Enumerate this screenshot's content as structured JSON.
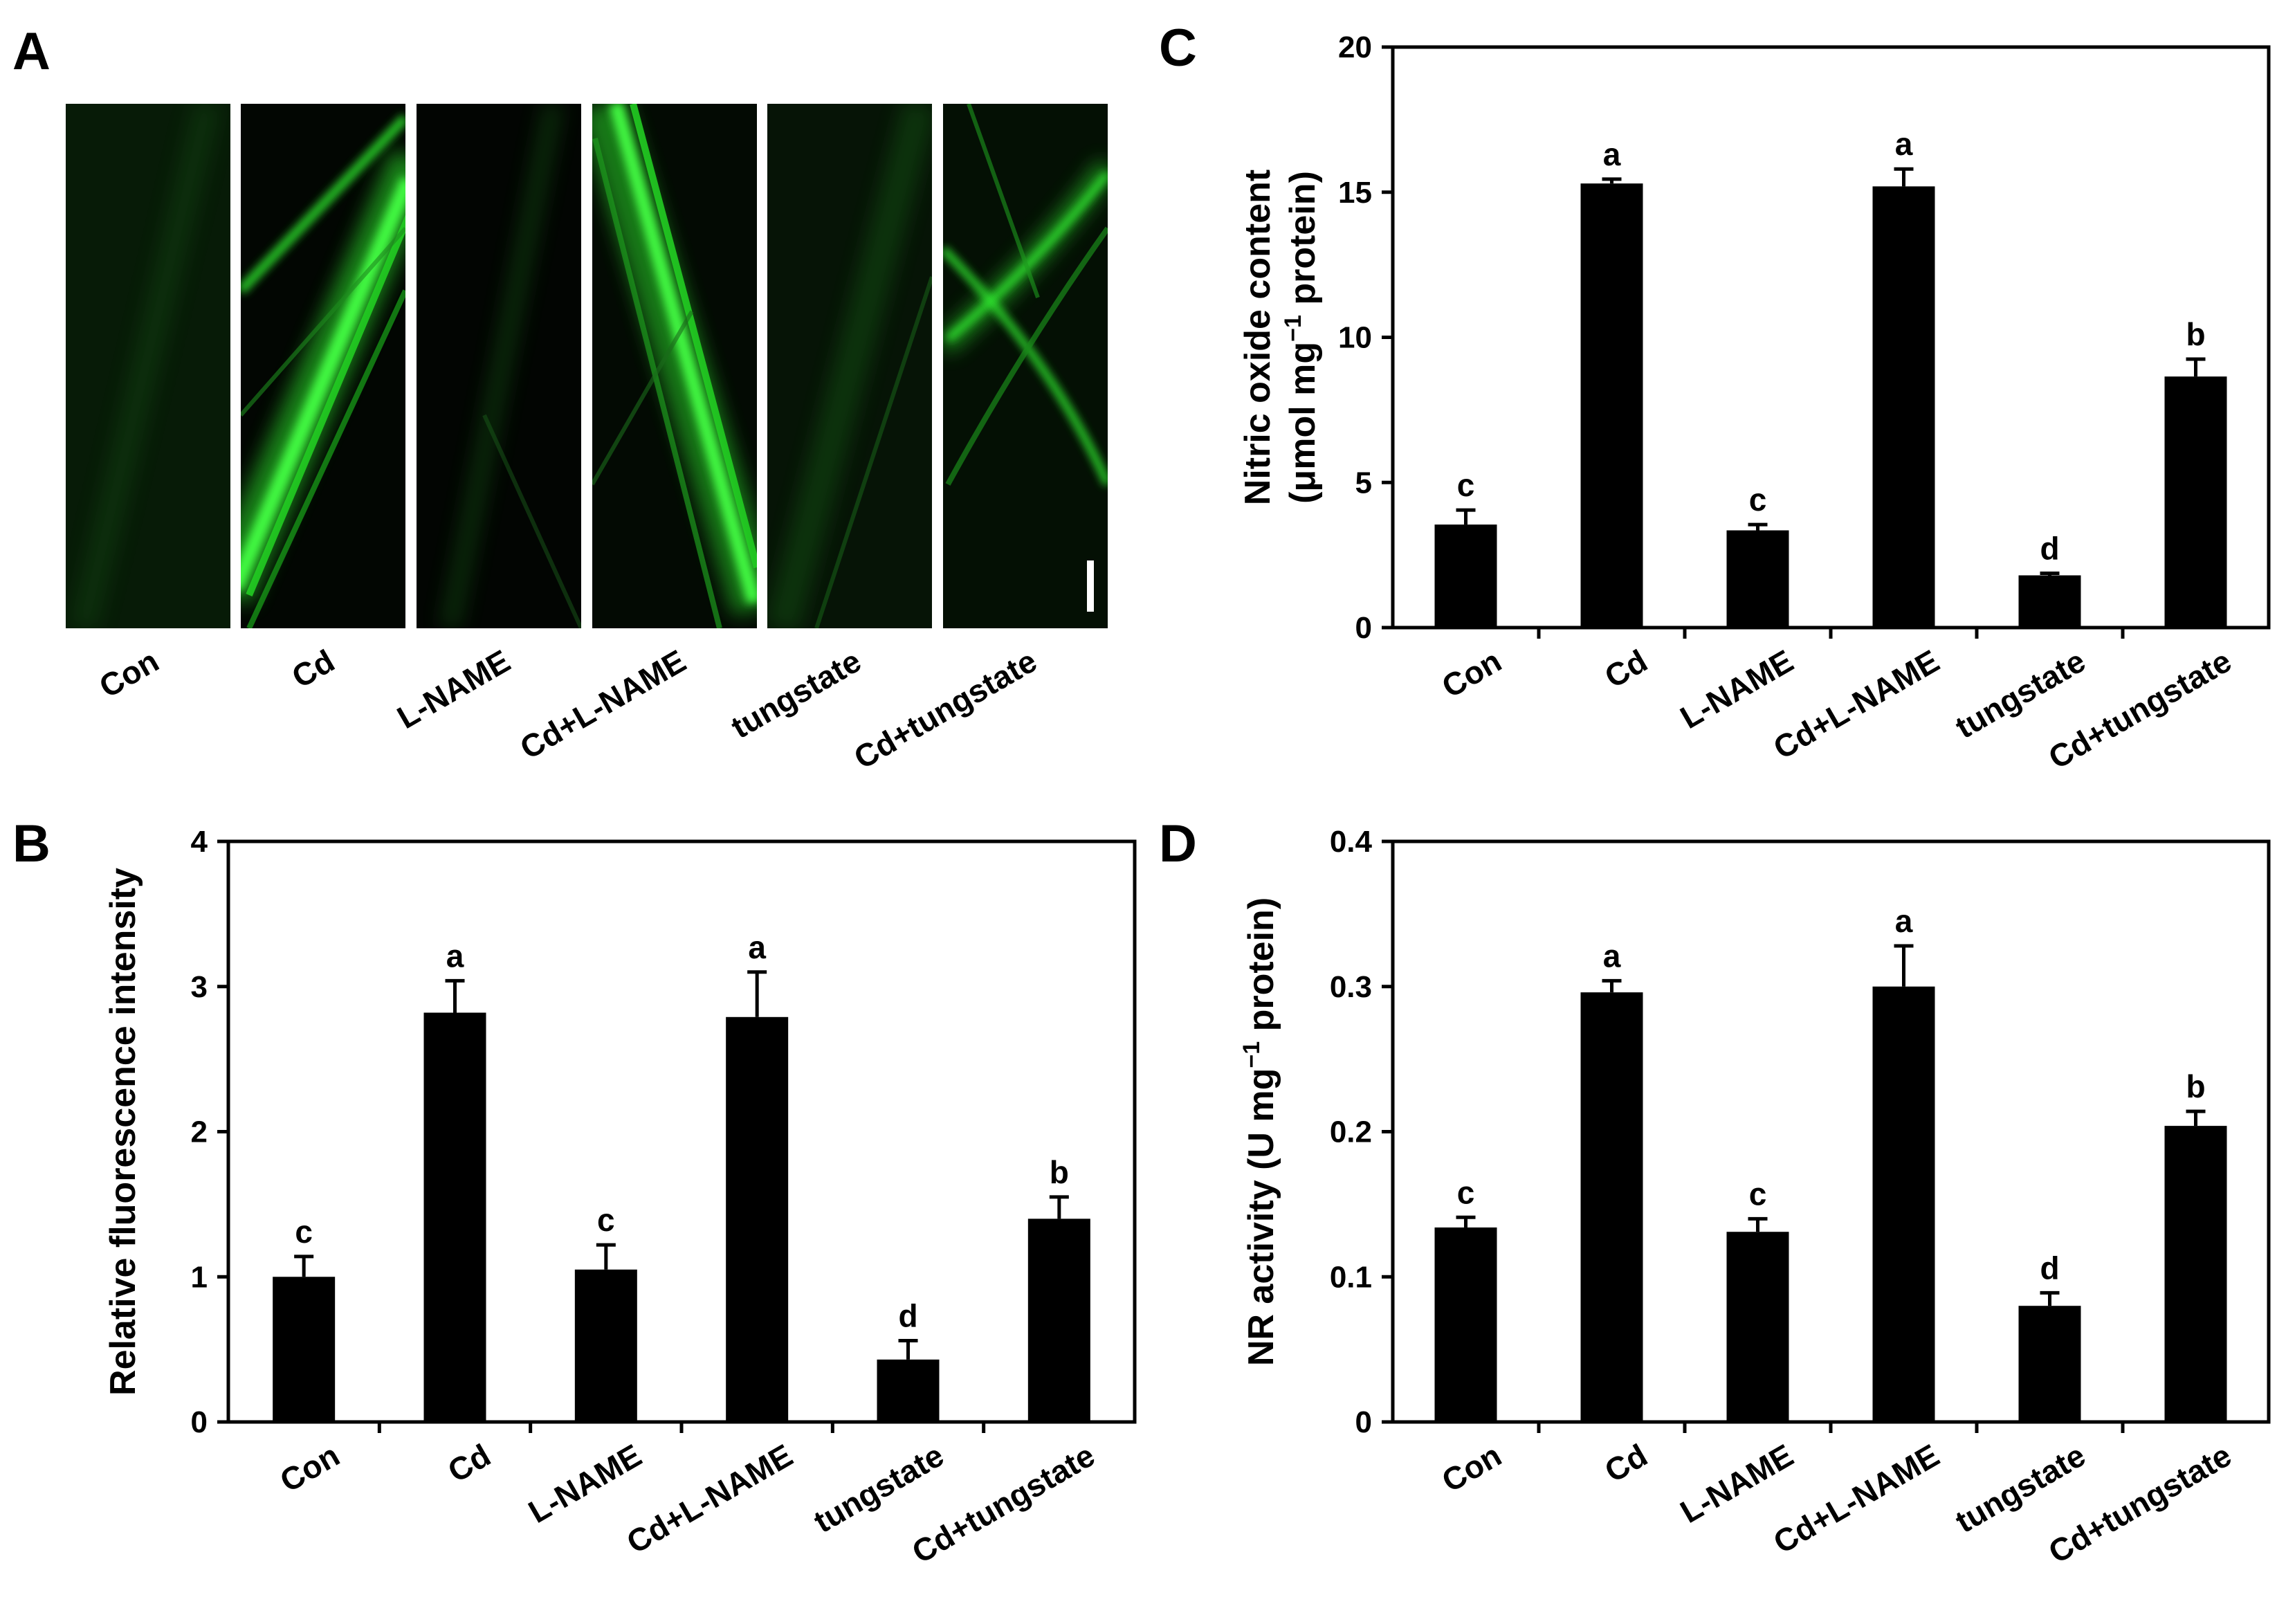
{
  "panel_a": {
    "letter": "A",
    "scale_bar": true,
    "images": [
      {
        "label": "Con",
        "fluorescence": "very-weak"
      },
      {
        "label": "Cd",
        "fluorescence": "strong"
      },
      {
        "label": "L-NAME",
        "fluorescence": "weak"
      },
      {
        "label": "Cd+L-NAME",
        "fluorescence": "strong"
      },
      {
        "label": "tungstate",
        "fluorescence": "weak"
      },
      {
        "label": "Cd+tungstate",
        "fluorescence": "moderate"
      }
    ],
    "colors": {
      "background": "#000000",
      "signal": "#33ff33"
    }
  },
  "chart_data": [
    {
      "panel": "B",
      "type": "bar",
      "ylabel": "Relative fluorescence intensity",
      "ylabel_sup": "",
      "ylabel_rest": "",
      "categories": [
        "Con",
        "Cd",
        "L-NAME",
        "Cd+L-NAME",
        "tungstate",
        "Cd+tungstate"
      ],
      "values": [
        1.0,
        2.82,
        1.05,
        2.79,
        0.43,
        1.4
      ],
      "errors": [
        0.14,
        0.22,
        0.17,
        0.31,
        0.13,
        0.15
      ],
      "letters": [
        "c",
        "a",
        "c",
        "a",
        "d",
        "b"
      ],
      "ylim": [
        0,
        4
      ],
      "yticks": [
        "0",
        "1",
        "2",
        "3",
        "4"
      ],
      "grid": false,
      "bar_color": "#000000"
    },
    {
      "panel": "C",
      "type": "bar",
      "ylabel": "Nitric oxide content",
      "ylabel2": "(μmol mg",
      "ylabel_sup": "−1",
      "ylabel_rest": " protein)",
      "categories": [
        "Con",
        "Cd",
        "L-NAME",
        "Cd+L-NAME",
        "tungstate",
        "Cd+tungstate"
      ],
      "values": [
        3.55,
        15.3,
        3.35,
        15.2,
        1.8,
        8.65
      ],
      "errors": [
        0.5,
        0.15,
        0.2,
        0.6,
        0.07,
        0.6
      ],
      "letters": [
        "c",
        "a",
        "c",
        "a",
        "d",
        "b"
      ],
      "ylim": [
        0,
        20
      ],
      "yticks": [
        "0",
        "5",
        "10",
        "15",
        "20"
      ],
      "grid": false,
      "bar_color": "#000000"
    },
    {
      "panel": "D",
      "type": "bar",
      "ylabel": "NR activity (U mg",
      "ylabel_sup": "−1",
      "ylabel_rest": " protein)",
      "categories": [
        "Con",
        "Cd",
        "L-NAME",
        "Cd+L-NAME",
        "tungstate",
        "Cd+tungstate"
      ],
      "values": [
        0.134,
        0.296,
        0.131,
        0.3,
        0.08,
        0.204
      ],
      "errors": [
        0.007,
        0.008,
        0.009,
        0.028,
        0.009,
        0.01
      ],
      "letters": [
        "c",
        "a",
        "c",
        "a",
        "d",
        "b"
      ],
      "ylim": [
        0,
        0.4
      ],
      "yticks": [
        "0",
        "0.1",
        "0.2",
        "0.3",
        "0.4"
      ],
      "grid": false,
      "bar_color": "#000000"
    }
  ]
}
